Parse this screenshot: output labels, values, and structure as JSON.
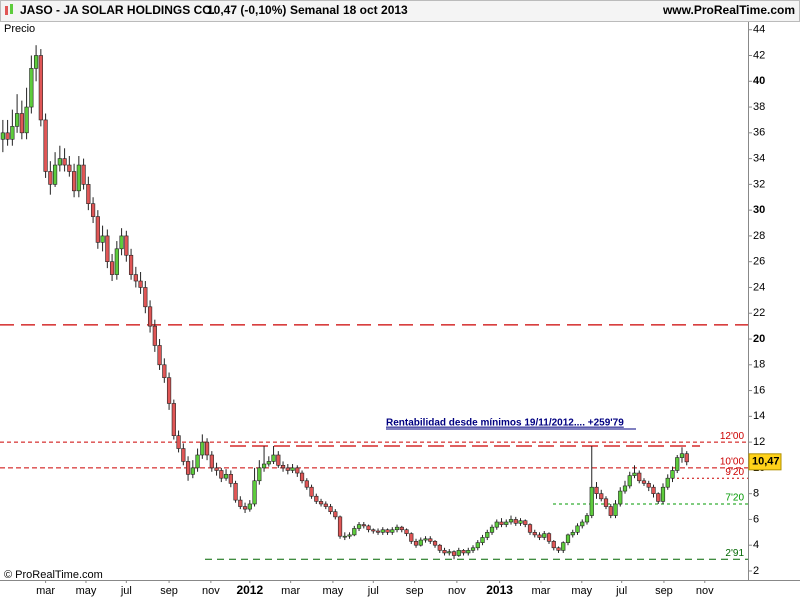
{
  "header": {
    "ticker": "JASO - JA SOLAR HOLDINGS CO.",
    "quote": "10,47 (-0,10%)",
    "period": "Semanal",
    "date": "18 oct 2013",
    "site": "www.ProRealTime.com"
  },
  "chart_data": {
    "type": "candlestick",
    "y_label": "Precio",
    "copyright": "© ProRealTime.com",
    "annotation": "Rentabilidad desde mínimos 19/11/2012.... +259'79",
    "up_color": "#5dcc3c",
    "down_color": "#e05656",
    "ylim": [
      1.3,
      44.6
    ],
    "yticks": [
      2,
      4,
      6,
      8,
      10,
      12,
      14,
      16,
      18,
      20,
      22,
      24,
      26,
      28,
      30,
      32,
      34,
      36,
      38,
      40,
      42,
      44
    ],
    "xlim": [
      -0.6,
      156.9
    ],
    "xticks": [
      {
        "value": 9,
        "label": "mar"
      },
      {
        "value": 17.5,
        "label": "may"
      },
      {
        "value": 26,
        "label": "jul"
      },
      {
        "value": 35,
        "label": "sep"
      },
      {
        "value": 43.8,
        "label": "nov"
      },
      {
        "value": 52,
        "label": "2012"
      },
      {
        "value": 60.6,
        "label": "mar"
      },
      {
        "value": 69.5,
        "label": "may"
      },
      {
        "value": 78,
        "label": "jul"
      },
      {
        "value": 86.7,
        "label": "sep"
      },
      {
        "value": 95.6,
        "label": "nov"
      },
      {
        "value": 104.6,
        "label": "2013"
      },
      {
        "value": 113.3,
        "label": "mar"
      },
      {
        "value": 121.9,
        "label": "may"
      },
      {
        "value": 130.3,
        "label": "jul"
      },
      {
        "value": 139.2,
        "label": "sep"
      },
      {
        "value": 147.8,
        "label": "nov"
      }
    ],
    "last_price": {
      "value": 10.47,
      "label": "10,47"
    },
    "levels": [
      {
        "value": 21.1,
        "color": "#cc0000"
      },
      {
        "value": 11.7,
        "color": "#cc0000"
      },
      {
        "value": 12,
        "label": "12'00",
        "color": "#cc0000"
      },
      {
        "value": 10,
        "label": "10'00",
        "color": "#cc0000"
      },
      {
        "value": 9.2,
        "label": "9'20",
        "color": "#cc0000"
      },
      {
        "value": 7.2,
        "label": "7'20",
        "color": "#009900"
      },
      {
        "value": 2.91,
        "label": "2'91",
        "color": "#006600"
      }
    ],
    "candles": {
      "open": [
        35.5,
        36,
        35.5,
        36.5,
        37.5,
        36,
        38,
        41,
        42,
        37,
        33,
        32,
        33.5,
        34,
        33.5,
        33,
        31.5,
        33.5,
        32,
        30.5,
        29.5,
        27.5,
        28,
        26,
        25,
        27,
        28,
        26.5,
        25,
        24.5,
        24,
        22.5,
        21,
        19.5,
        18,
        17,
        15,
        12.5,
        11.5,
        10.5,
        9.5,
        10,
        11,
        12,
        11,
        10,
        9.8,
        9.2,
        9.5,
        8.8,
        7.5,
        7,
        6.8,
        7.2,
        9,
        10,
        10.3,
        10.5,
        11,
        10.2,
        10,
        9.8,
        10,
        9.6,
        9,
        8.5,
        7.8,
        7.4,
        7.2,
        7,
        6.6,
        6.2,
        4.7,
        4.7,
        4.8,
        5.3,
        5.6,
        5.5,
        5.2,
        5.1,
        5.0,
        5.2,
        5.0,
        5.2,
        5.4,
        5.2,
        4.9,
        4.3,
        4.0,
        4.4,
        4.5,
        4.3,
        4.0,
        3.6,
        3.4,
        3.5,
        3.2,
        3.6,
        3.4,
        3.6,
        3.8,
        4.2,
        4.6,
        5.0,
        5.4,
        5.8,
        5.6,
        5.8,
        6.0,
        5.7,
        5.9,
        5.6,
        5.0,
        4.8,
        4.6,
        4.9,
        4.3,
        3.8,
        3.6,
        4.2,
        4.8,
        5.0,
        5.5,
        5.8,
        6.3,
        8.5,
        8.0,
        7.6,
        7.0,
        6.3,
        7.2,
        8.2,
        8.6,
        9.4,
        9.6,
        9.0,
        8.8,
        8.5,
        8.0,
        7.4,
        8.5,
        9.2,
        9.8,
        10.8,
        11.1
      ],
      "high": [
        37,
        37,
        37.8,
        39,
        38.5,
        39.5,
        42,
        42.8,
        42.5,
        37.5,
        33.8,
        34.5,
        35,
        34.8,
        34.2,
        33.6,
        34.2,
        34,
        32.6,
        31,
        30,
        28.8,
        28.5,
        26.6,
        27.6,
        28.6,
        28.4,
        27,
        25.6,
        25.2,
        24.5,
        23,
        21.5,
        20,
        18.5,
        17.4,
        15.3,
        12.9,
        11.9,
        10.9,
        10.6,
        11.5,
        12.6,
        12.3,
        11.3,
        10.4,
        10,
        9.9,
        9.8,
        9,
        7.8,
        7.3,
        7.5,
        10,
        10.6,
        11.7,
        10.9,
        11.7,
        11.3,
        10.5,
        10.3,
        10.3,
        10.2,
        9.8,
        9.2,
        8.7,
        8,
        7.6,
        7.4,
        7.2,
        6.8,
        6.3,
        5,
        5,
        5.5,
        5.8,
        5.8,
        5.6,
        5.3,
        5.3,
        5.4,
        5.3,
        5.4,
        5.6,
        5.5,
        5.3,
        5,
        4.5,
        4.6,
        4.7,
        4.7,
        4.4,
        4.1,
        3.8,
        3.7,
        3.6,
        3.8,
        3.7,
        3.8,
        4,
        4.4,
        4.8,
        5.2,
        5.6,
        6,
        6.1,
        6,
        6.3,
        6.2,
        6.1,
        6,
        5.7,
        5.2,
        5,
        5.1,
        5,
        4.4,
        3.9,
        4.3,
        4.9,
        5.2,
        5.7,
        6,
        6.5,
        11.7,
        8.9,
        8.3,
        7.8,
        7.2,
        7.5,
        8.5,
        9,
        9.7,
        10.2,
        9.8,
        9.2,
        9,
        8.7,
        8.1,
        8.8,
        9.5,
        10.1,
        11,
        11.6,
        11.3
      ],
      "low": [
        34.5,
        35,
        35,
        36,
        35.5,
        35.5,
        37.5,
        40,
        36.5,
        32.5,
        31.2,
        31.8,
        33,
        33,
        32.6,
        31,
        31,
        31.6,
        30,
        29,
        27,
        26.8,
        25.5,
        24.5,
        24.6,
        26.5,
        26,
        24.6,
        24,
        23.5,
        22,
        20.5,
        19,
        17.6,
        16.6,
        14.5,
        12.2,
        11.2,
        10.2,
        9,
        9.2,
        9.7,
        10.7,
        10.6,
        9.7,
        9.4,
        8.9,
        9,
        8.5,
        7.3,
        6.8,
        6.5,
        6.6,
        7,
        8.7,
        9.7,
        10.1,
        10.3,
        10,
        9.7,
        9.5,
        9.6,
        9.3,
        8.8,
        8.3,
        7.6,
        7.2,
        7,
        6.8,
        6.4,
        6,
        4.5,
        4.4,
        4.5,
        4.7,
        5.1,
        5.3,
        5,
        4.9,
        4.8,
        4.8,
        4.8,
        4.8,
        5,
        5,
        4.7,
        4.1,
        3.8,
        3.9,
        4.2,
        4.1,
        3.8,
        3.4,
        3.2,
        3.2,
        2.91,
        3.1,
        3.2,
        3.2,
        3.4,
        3.6,
        4,
        4.4,
        4.8,
        5.2,
        5.4,
        5.4,
        5.6,
        5.5,
        5.5,
        5.4,
        4.8,
        4.6,
        4.4,
        4.4,
        4.1,
        3.6,
        3.4,
        3.4,
        4,
        4.6,
        4.8,
        5.3,
        5.6,
        6.1,
        7.6,
        7.4,
        6.8,
        6.1,
        6.1,
        7,
        8,
        8.4,
        9.2,
        8.8,
        8.6,
        8.2,
        7.7,
        7.2,
        7.2,
        8.3,
        8.9,
        9.6,
        10.4,
        10.2
      ],
      "close": [
        36,
        35.5,
        36.5,
        37.5,
        36,
        38,
        41,
        42,
        37,
        33,
        32,
        33.5,
        34,
        33.5,
        33,
        31.5,
        33.5,
        32,
        30.5,
        29.5,
        27.5,
        28,
        26,
        25,
        27,
        28,
        26.5,
        25,
        24.5,
        24,
        22.5,
        21,
        19.5,
        18,
        17,
        15,
        12.5,
        11.5,
        10.5,
        9.5,
        10,
        11,
        12,
        11,
        10,
        9.8,
        9.2,
        9.5,
        8.8,
        7.5,
        7,
        6.8,
        7.2,
        9,
        10,
        10.3,
        10.5,
        11,
        10.2,
        10,
        9.8,
        10,
        9.6,
        9,
        8.5,
        7.8,
        7.4,
        7.2,
        7,
        6.6,
        6.2,
        4.7,
        4.7,
        4.8,
        5.3,
        5.6,
        5.5,
        5.2,
        5.1,
        5.0,
        5.2,
        5.0,
        5.2,
        5.4,
        5.2,
        4.9,
        4.3,
        4.0,
        4.4,
        4.5,
        4.3,
        4.0,
        3.6,
        3.4,
        3.5,
        3.2,
        3.6,
        3.4,
        3.6,
        3.8,
        4.2,
        4.6,
        5.0,
        5.4,
        5.8,
        5.6,
        5.8,
        6.0,
        5.7,
        5.9,
        5.6,
        5.0,
        4.8,
        4.6,
        4.9,
        4.3,
        3.8,
        3.6,
        4.2,
        4.8,
        5.0,
        5.5,
        5.8,
        6.3,
        8.5,
        8.0,
        7.6,
        7.0,
        6.3,
        7.2,
        8.2,
        8.6,
        9.4,
        9.6,
        9.0,
        8.8,
        8.5,
        8.0,
        7.4,
        8.5,
        9.2,
        9.8,
        10.8,
        11.1,
        10.47
      ]
    }
  }
}
